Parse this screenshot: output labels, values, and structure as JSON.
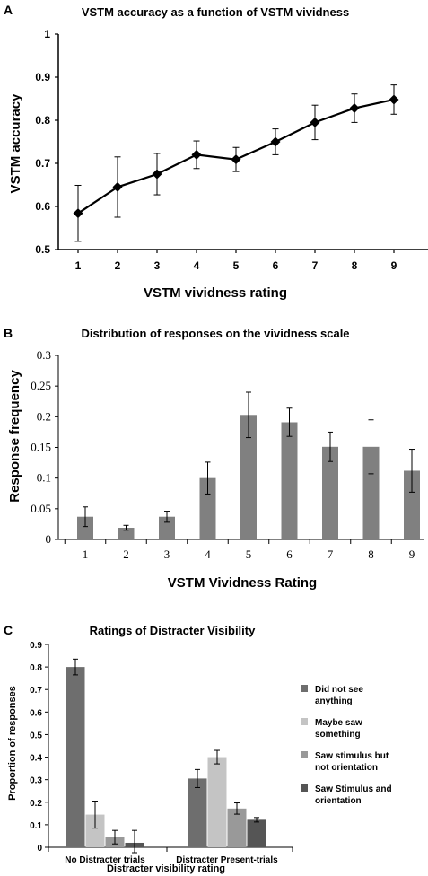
{
  "chart_data": [
    {
      "type": "line",
      "panel_label": "A",
      "title": "VSTM accuracy  as a function of VSTM vividness",
      "xlabel": "VSTM vividness rating",
      "ylabel": "VSTM accuracy",
      "x": [
        1,
        2,
        3,
        4,
        5,
        6,
        7,
        8,
        9
      ],
      "x_tick_labels": [
        "1",
        "2",
        "3",
        "4",
        "5",
        "6",
        "7",
        "8",
        "9"
      ],
      "y": [
        0.584,
        0.645,
        0.675,
        0.72,
        0.709,
        0.75,
        0.795,
        0.828,
        0.848
      ],
      "y_err": [
        0.065,
        0.07,
        0.048,
        0.032,
        0.028,
        0.03,
        0.04,
        0.033,
        0.034
      ],
      "ylim": [
        0.5,
        1
      ],
      "y_ticks": [
        "0.5",
        "0.6",
        "0.7",
        "0.8",
        "0.9",
        "1"
      ],
      "grid": false,
      "color": "#000000"
    },
    {
      "type": "bar",
      "panel_label": "B",
      "title": "Distribution of responses on the vividness scale",
      "xlabel": "VSTM Vividness Rating",
      "ylabel": "Response frequency",
      "categories": [
        "1",
        "2",
        "3",
        "4",
        "5",
        "6",
        "7",
        "8",
        "9"
      ],
      "values": [
        0.037,
        0.019,
        0.037,
        0.1,
        0.203,
        0.191,
        0.151,
        0.151,
        0.112
      ],
      "errors": [
        0.016,
        0.004,
        0.009,
        0.026,
        0.037,
        0.023,
        0.024,
        0.044,
        0.035
      ],
      "ylim": [
        0,
        0.3
      ],
      "y_ticks": [
        "0",
        "0.05",
        "0.1",
        "0.15",
        "0.2",
        "0.25",
        "0.3"
      ],
      "grid": false,
      "color": "#808080"
    },
    {
      "type": "bar",
      "panel_label": "C",
      "title": "Ratings of Distracter Visibility",
      "xlabel": "Distracter visibility rating",
      "ylabel": "Proportion of responses",
      "categories": [
        "No Distracter trials",
        "Distracter Present-trials"
      ],
      "series": [
        {
          "name": "Did not see anything",
          "values": [
            0.8,
            0.305
          ],
          "errors": [
            0.035,
            0.04
          ],
          "color": "#6e6e6e"
        },
        {
          "name": "Maybe saw something",
          "values": [
            0.145,
            0.4
          ],
          "errors": [
            0.06,
            0.03
          ],
          "color": "#c4c4c4"
        },
        {
          "name": "Saw stimulus but not orientation",
          "values": [
            0.045,
            0.172
          ],
          "errors": [
            0.03,
            0.025
          ],
          "color": "#999999"
        },
        {
          "name": "Saw Stimulus and orientation",
          "values": [
            0.02,
            0.122
          ],
          "errors": [
            0.055,
            0.01
          ],
          "color": "#555555"
        }
      ],
      "legend_lines": [
        [
          "Did not see",
          "anything"
        ],
        [
          "Maybe saw",
          "something"
        ],
        [
          "Saw stimulus but",
          "not orientation"
        ],
        [
          "Saw Stimulus and",
          "orientation"
        ]
      ],
      "legend_position": "right",
      "ylim": [
        0,
        0.9
      ],
      "y_ticks": [
        "0",
        "0.1",
        "0.2",
        "0.3",
        "0.4",
        "0.5",
        "0.6",
        "0.7",
        "0.8",
        "0.9"
      ],
      "grid": false
    }
  ]
}
